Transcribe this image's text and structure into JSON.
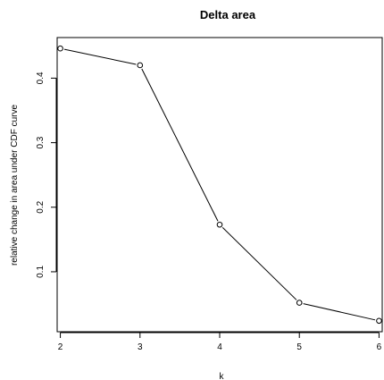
{
  "chart_data": {
    "type": "line",
    "title": "Delta area",
    "xlabel": "k",
    "ylabel": "relative change in area under CDF curve",
    "x": [
      2,
      3,
      4,
      5,
      6
    ],
    "series": [
      {
        "values": [
          0.446,
          0.42,
          0.173,
          0.052,
          0.024
        ]
      }
    ],
    "xticks": [
      2,
      3,
      4,
      5,
      6
    ],
    "yticks": [
      0.1,
      0.2,
      0.3,
      0.4
    ],
    "xlim": [
      1.96,
      6.04
    ],
    "ylim": [
      0.0071,
      0.4629
    ],
    "grid": false,
    "marker": "open-circle",
    "colors": {
      "line": "#000000",
      "axis": "#000000",
      "background": "#ffffff"
    }
  }
}
